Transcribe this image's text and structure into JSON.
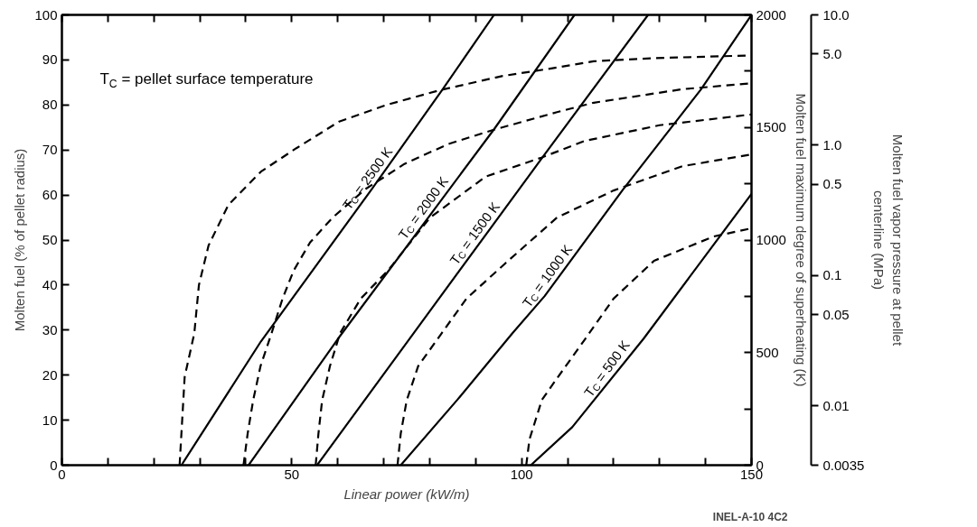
{
  "chart_data": {
    "type": "line",
    "xlabel": "Linear power (kW/m)",
    "ylabel": "Molten fuel (% of pellet radius)",
    "y2label": "Molten fuel maximum degree of superheating (K)",
    "y3label": "Molten fuel vapor pressure at pellet\ncenterline (MPa)",
    "xlim": [
      0,
      150
    ],
    "ylim": [
      0,
      100
    ],
    "y2lim": [
      0,
      2000
    ],
    "y3lim": [
      0.0035,
      10
    ],
    "log": "y3",
    "xticks": [
      0,
      {
        "value": 10,
        "label": null
      },
      {
        "value": 20,
        "label": null
      },
      {
        "value": 30,
        "label": null
      },
      {
        "value": 40,
        "label": null
      },
      50,
      {
        "value": 60,
        "label": null
      },
      {
        "value": 70,
        "label": null
      },
      {
        "value": 80,
        "label": null
      },
      {
        "value": 90,
        "label": null
      },
      100,
      {
        "value": 110,
        "label": null
      },
      {
        "value": 120,
        "label": null
      },
      {
        "value": 130,
        "label": null
      },
      {
        "value": 140,
        "label": null
      },
      150
    ],
    "yticks": [
      0,
      10,
      20,
      30,
      40,
      50,
      60,
      70,
      80,
      90,
      100
    ],
    "y2ticks": [
      0,
      {
        "value": 250,
        "label": null
      },
      500,
      {
        "value": 750,
        "label": null
      },
      1000,
      {
        "value": 1250,
        "label": null
      },
      1500,
      {
        "value": 1750,
        "label": null
      },
      2000
    ],
    "y3ticks": [
      0.0035,
      0.01,
      0.05,
      0.1,
      0.5,
      {
        "value": 1,
        "label": "1.0"
      },
      {
        "value": 5,
        "label": "5.0"
      },
      {
        "value": 10,
        "label": "10.0"
      }
    ],
    "series": [
      {
        "color": "#000000",
        "line_style": "dashed",
        "x": [
          25.6,
          26.7,
          28.8,
          29.8,
          31.9,
          36.2,
          43.3,
          51,
          60.3,
          70.9,
          82.3,
          95.7,
          107,
          115.7,
          128.8,
          150
        ],
        "values": [
          0,
          19.6,
          29.3,
          40,
          48.8,
          57.8,
          65.2,
          70.4,
          76.3,
          80.1,
          83.3,
          86.4,
          88.2,
          89.7,
          90.4,
          91
        ]
      },
      {
        "color": "#000000",
        "line_style": "dashed",
        "x": [
          39.5,
          40.4,
          41.6,
          43.2,
          45.6,
          48,
          50.4,
          54,
          58.9,
          66,
          74.5,
          84,
          94.3,
          107.7,
          115.7,
          135,
          150
        ],
        "values": [
          0,
          7,
          14.4,
          22,
          29.3,
          37,
          43.2,
          49.5,
          55,
          61.3,
          66.9,
          71.3,
          74.6,
          78.4,
          80.5,
          83.5,
          84.8
        ]
      },
      {
        "color": "#000000",
        "line_style": "dashed",
        "x": [
          55.2,
          55.8,
          56.6,
          58.3,
          60.5,
          65,
          70.9,
          80.1,
          92.2,
          104.3,
          113.7,
          130,
          150
        ],
        "values": [
          0,
          7,
          14.4,
          22,
          29.3,
          37,
          43.2,
          55,
          64.1,
          68.3,
          72,
          75.5,
          77.9
        ]
      },
      {
        "color": "#000000",
        "line_style": "dashed",
        "x": [
          73,
          73.7,
          75,
          77.5,
          82.6,
          88,
          96.2,
          107.7,
          120,
          135,
          150
        ],
        "values": [
          0,
          7,
          14.4,
          22,
          29.3,
          37,
          44.6,
          55,
          61,
          66.4,
          69
        ]
      },
      {
        "color": "#000000",
        "line_style": "dashed",
        "x": [
          101,
          101.7,
          104.4,
          107.7,
          113.8,
          120,
          128.8,
          141.8,
          150
        ],
        "values": [
          0,
          5.7,
          14.5,
          19.3,
          28,
          37,
          45.4,
          50.8,
          52.6
        ]
      },
      {
        "name": "T$_{C}$ = 2500 K",
        "color": "#000000",
        "line_style": "solid",
        "axis": "y2",
        "x": [
          26,
          43.3,
          67.4,
          82.9,
          94
        ],
        "values": [
          0,
          550,
          1226,
          1672,
          2000
        ]
      },
      {
        "name": "T$_{C}$ = 2000 K",
        "color": "#000000",
        "line_style": "solid",
        "axis": "y2",
        "x": [
          40.6,
          60,
          94,
          111.5
        ],
        "values": [
          0,
          560,
          1492,
          2000
        ]
      },
      {
        "name": "T$_{C}$ = 1500 K",
        "color": "#000000",
        "line_style": "solid",
        "axis": "y2",
        "x": [
          55.5,
          75.2,
          105,
          127.5
        ],
        "values": [
          0,
          550,
          1380,
          2000
        ]
      },
      {
        "name": "T$_{C}$ = 1000 K",
        "color": "#000000",
        "line_style": "solid",
        "axis": "y2",
        "x": [
          73.7,
          86,
          98,
          105,
          122,
          139,
          150
        ],
        "values": [
          0,
          290,
          586,
          751,
          1223,
          1669,
          2000
        ]
      },
      {
        "name": "T$_{C}$ = 500 K",
        "color": "#000000",
        "line_style": "solid",
        "axis": "y2",
        "x": [
          102,
          111,
          126.5,
          150
        ],
        "values": [
          0,
          169,
          561,
          1205
        ]
      }
    ],
    "annotations": [
      "T$_{C}$ = pellet surface temperature",
      "INEL-A-10 4C2"
    ]
  }
}
